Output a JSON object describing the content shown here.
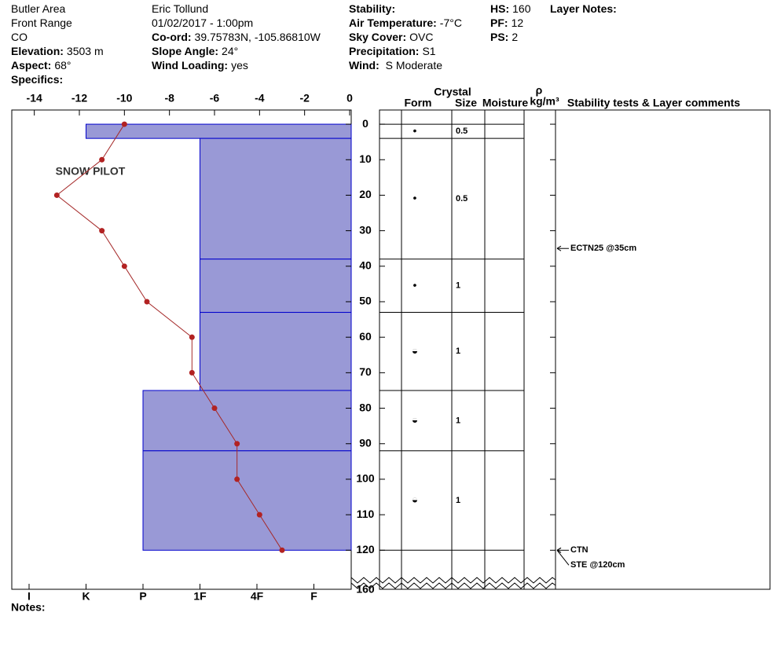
{
  "header": {
    "columns": [
      [
        {
          "text": "Butler Area"
        },
        {
          "text": "Front Range"
        },
        {
          "text": "CO"
        },
        {
          "label": "Elevation:",
          "value": "3503 m"
        },
        {
          "label": "Aspect:",
          "value": "68°"
        },
        {
          "label": "Specifics:"
        }
      ],
      [
        {
          "text": "Eric Tollund"
        },
        {
          "text": "01/02/2017 - 1:00pm"
        },
        {
          "label": "Co-ord:",
          "value": "39.75783N, -105.86810W"
        },
        {
          "label": "Slope Angle:",
          "value": "24°"
        },
        {
          "label": "Wind Loading:",
          "value": "yes"
        }
      ],
      [
        {
          "label": "Stability:"
        },
        {
          "label": "Air Temperature:",
          "value": "-7°C"
        },
        {
          "label": "Sky Cover:",
          "value": "OVC"
        },
        {
          "label": "Precipitation:",
          "value": "S1"
        },
        {
          "label": "Wind:",
          "value": " S Moderate"
        }
      ],
      [
        {
          "label": "HS:",
          "value": 160
        },
        {
          "label": "PF:",
          "value": 12
        },
        {
          "label": "PS:",
          "value": 2
        }
      ],
      [
        {
          "label": "Layer Notes:"
        }
      ]
    ],
    "notes": "Notes:",
    "logo": "SNOW PILOT"
  },
  "chart_data": {
    "type": "snow-profile",
    "temperature": {
      "color": "#a52a2a",
      "depths": [
        0,
        10,
        20,
        30,
        40,
        50,
        60,
        70,
        80,
        90,
        100,
        110,
        120
      ],
      "values": [
        -10,
        -11,
        -13,
        -11,
        -10,
        -9,
        -7,
        -7,
        -6,
        -5,
        -5,
        -4,
        -3
      ]
    },
    "xlim": [
      -15,
      0
    ],
    "xticks": [
      -14,
      -12,
      -10,
      -8,
      -6,
      -4,
      -2,
      0
    ],
    "ylim": [
      -4,
      131
    ],
    "yticks": [
      0,
      10,
      20,
      30,
      40,
      50,
      60,
      70,
      80,
      90,
      100,
      110,
      120
    ],
    "axis_break_label": 160,
    "hardness_scale": [
      "I",
      "K",
      "P",
      "1F",
      "4F",
      "F"
    ],
    "bar_color": "#9999d6",
    "layers": [
      {
        "top": 0,
        "bottom": 4,
        "hardness": "K",
        "form": "•",
        "size": 0.5
      },
      {
        "top": 4,
        "bottom": 38,
        "hardness": "1F",
        "form": "•",
        "size": 0.5
      },
      {
        "top": 38,
        "bottom": 53,
        "hardness": "1F",
        "form": "•",
        "size": 1
      },
      {
        "top": 53,
        "bottom": 75,
        "hardness": "1F",
        "form": "◒",
        "size": 1
      },
      {
        "top": 75,
        "bottom": 92,
        "hardness": "P",
        "form": "◒",
        "size": 1
      },
      {
        "top": 92,
        "bottom": 120,
        "hardness": "P",
        "form": "◒",
        "size": 1
      }
    ],
    "table_headers": {
      "crystal": "Crystal",
      "form": "Form",
      "size": "Size",
      "moisture": "Moisture",
      "rho": "ρ",
      "density_unit": "kg/m³",
      "comments": "Stability tests & Layer comments"
    },
    "comments": [
      {
        "depth": 35,
        "text": "ECTN25 @35cm"
      },
      {
        "depth": 120,
        "text": "CTN"
      },
      {
        "depth": 120,
        "text": "STE @120cm"
      }
    ]
  }
}
